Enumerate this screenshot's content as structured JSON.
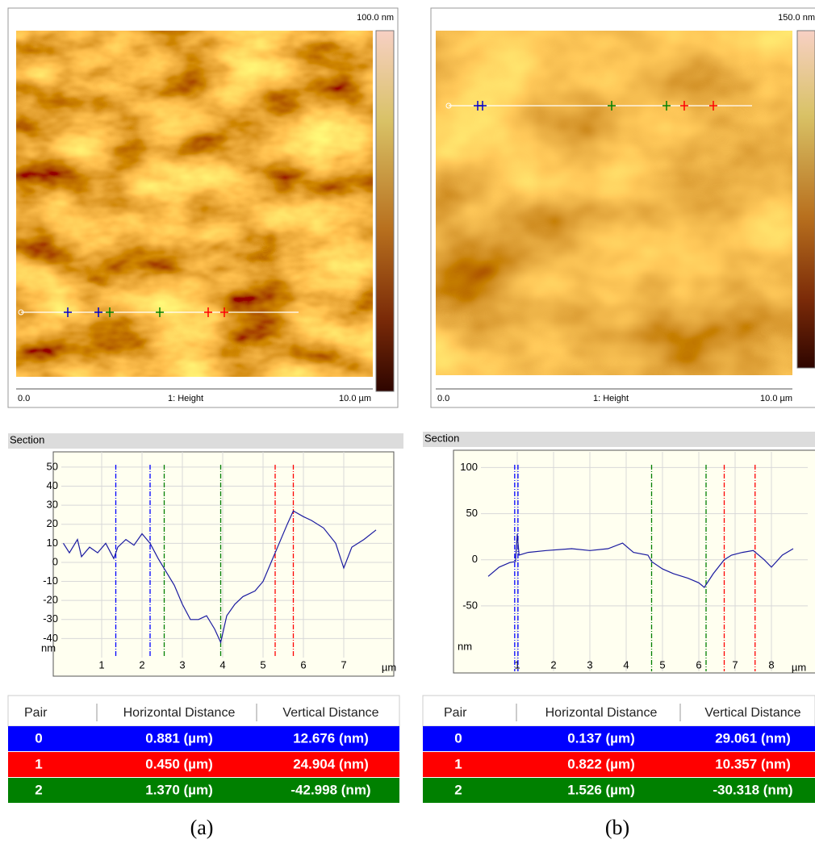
{
  "chart_data": [
    {
      "type": "line",
      "title": "Section",
      "x_label": "µm",
      "y_label": "nm",
      "color": "#1a1aa0",
      "x": [
        0.05,
        0.2,
        0.4,
        0.5,
        0.7,
        0.9,
        1.1,
        1.3,
        1.4,
        1.6,
        1.8,
        2.0,
        2.2,
        2.4,
        2.6,
        2.8,
        3.0,
        3.2,
        3.4,
        3.6,
        3.8,
        3.95,
        4.1,
        4.3,
        4.5,
        4.8,
        5.0,
        5.2,
        5.4,
        5.6,
        5.75,
        6.0,
        6.2,
        6.5,
        6.8,
        7.0,
        7.2,
        7.5,
        7.8
      ],
      "values": [
        10,
        5,
        12,
        3,
        8,
        5,
        10,
        2,
        8,
        12,
        9,
        15,
        10,
        2,
        -5,
        -12,
        -22,
        -30,
        -30,
        -28,
        -35,
        -42,
        -28,
        -22,
        -18,
        -15,
        -10,
        0,
        10,
        20,
        27,
        24,
        22,
        18,
        10,
        -3,
        8,
        12,
        17
      ],
      "xlim": [
        0,
        8.2
      ],
      "ylim": [
        -50,
        58
      ],
      "xticks": [
        1,
        2,
        3,
        4,
        5,
        6,
        7
      ],
      "yticks": [
        50,
        40,
        30,
        20,
        10,
        0,
        -10,
        -20,
        -30,
        -40
      ],
      "grid": true,
      "cursors": [
        {
          "color": "#0000ff",
          "x": 1.35
        },
        {
          "color": "#0000ff",
          "x": 2.2
        },
        {
          "color": "#008000",
          "x": 2.55
        },
        {
          "color": "#008000",
          "x": 3.95
        },
        {
          "color": "#ff0000",
          "x": 5.3
        },
        {
          "color": "#ff0000",
          "x": 5.75
        }
      ]
    },
    {
      "type": "line",
      "title": "Section",
      "x_label": "µm",
      "y_label": "nm",
      "color": "#1a1aa0",
      "x": [
        0.2,
        0.5,
        0.8,
        0.95,
        1.0,
        1.05,
        1.3,
        1.8,
        2.5,
        3.0,
        3.5,
        3.9,
        4.2,
        4.6,
        4.7,
        5.0,
        5.3,
        5.7,
        6.0,
        6.15,
        6.4,
        6.7,
        6.9,
        7.2,
        7.5,
        7.8,
        8.0,
        8.3,
        8.6
      ],
      "values": [
        -18,
        -8,
        -3,
        -2,
        28,
        5,
        8,
        10,
        12,
        10,
        12,
        18,
        8,
        5,
        -2,
        -10,
        -15,
        -20,
        -25,
        -30,
        -15,
        0,
        5,
        8,
        10,
        0,
        -8,
        5,
        12
      ],
      "xlim": [
        0,
        9
      ],
      "ylim": [
        -121,
        117
      ],
      "xticks": [
        1,
        2,
        3,
        4,
        5,
        6,
        7,
        8
      ],
      "yticks": [
        100,
        50,
        0,
        -50
      ],
      "grid": true,
      "cursors": [
        {
          "color": "#0000ff",
          "x": 0.93
        },
        {
          "color": "#0000ff",
          "x": 1.02
        },
        {
          "color": "#008000",
          "x": 4.7
        },
        {
          "color": "#008000",
          "x": 6.2
        },
        {
          "color": "#ff0000",
          "x": 6.7
        },
        {
          "color": "#ff0000",
          "x": 7.55
        }
      ]
    }
  ],
  "images": [
    {
      "scale_max": "100.0 nm",
      "x_start": "0.0",
      "channel": "1: Height",
      "x_end": "10.0 µm"
    },
    {
      "scale_max": "150.0 nm",
      "x_start": "0.0",
      "channel": "1: Height",
      "x_end": "10.0 µm"
    }
  ],
  "tables": [
    {
      "columns": [
        "Pair",
        "Horizontal Distance",
        "Vertical Distance"
      ],
      "rows": [
        [
          "0",
          "0.881 (µm)",
          "12.676 (nm)"
        ],
        [
          "1",
          "0.450 (µm)",
          "24.904 (nm)"
        ],
        [
          "2",
          "1.370 (µm)",
          "-42.998 (nm)"
        ]
      ]
    },
    {
      "columns": [
        "Pair",
        "Horizontal Distance",
        "Vertical Distance"
      ],
      "rows": [
        [
          "0",
          "0.137 (µm)",
          "29.061 (nm)"
        ],
        [
          "1",
          "0.822 (µm)",
          "10.357 (nm)"
        ],
        [
          "2",
          "1.526 (µm)",
          "-30.318 (nm)"
        ]
      ]
    }
  ],
  "captions": [
    "(a)",
    "(b)"
  ]
}
